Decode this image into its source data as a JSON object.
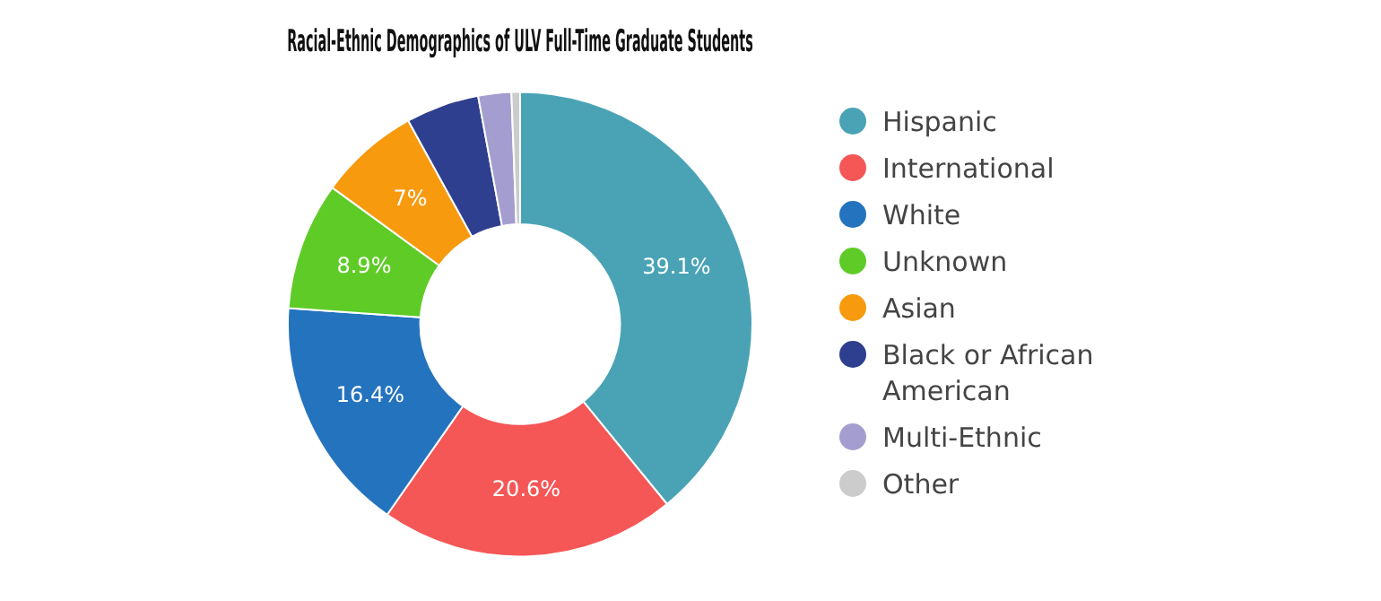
{
  "chart_data": {
    "type": "donut",
    "title": "Racial-Ethnic Demographics of ULV Full-Time Graduate Students",
    "categories": [
      "Hispanic",
      "International",
      "White",
      "Unknown",
      "Asian",
      "Black or African American",
      "Multi-Ethnic",
      "Other"
    ],
    "values": [
      39.1,
      20.6,
      16.4,
      8.9,
      7,
      5.1,
      2.3,
      0.6
    ],
    "value_labels": [
      "39.1%",
      "20.6%",
      "16.4%",
      "8.9%",
      "7%",
      null,
      null,
      null
    ],
    "colors": [
      "#4aa3b5",
      "#f55656",
      "#2473be",
      "#5fcb27",
      "#f79a0e",
      "#2f3f8f",
      "#a49ed0",
      "#cccccc"
    ],
    "legend": "right"
  }
}
